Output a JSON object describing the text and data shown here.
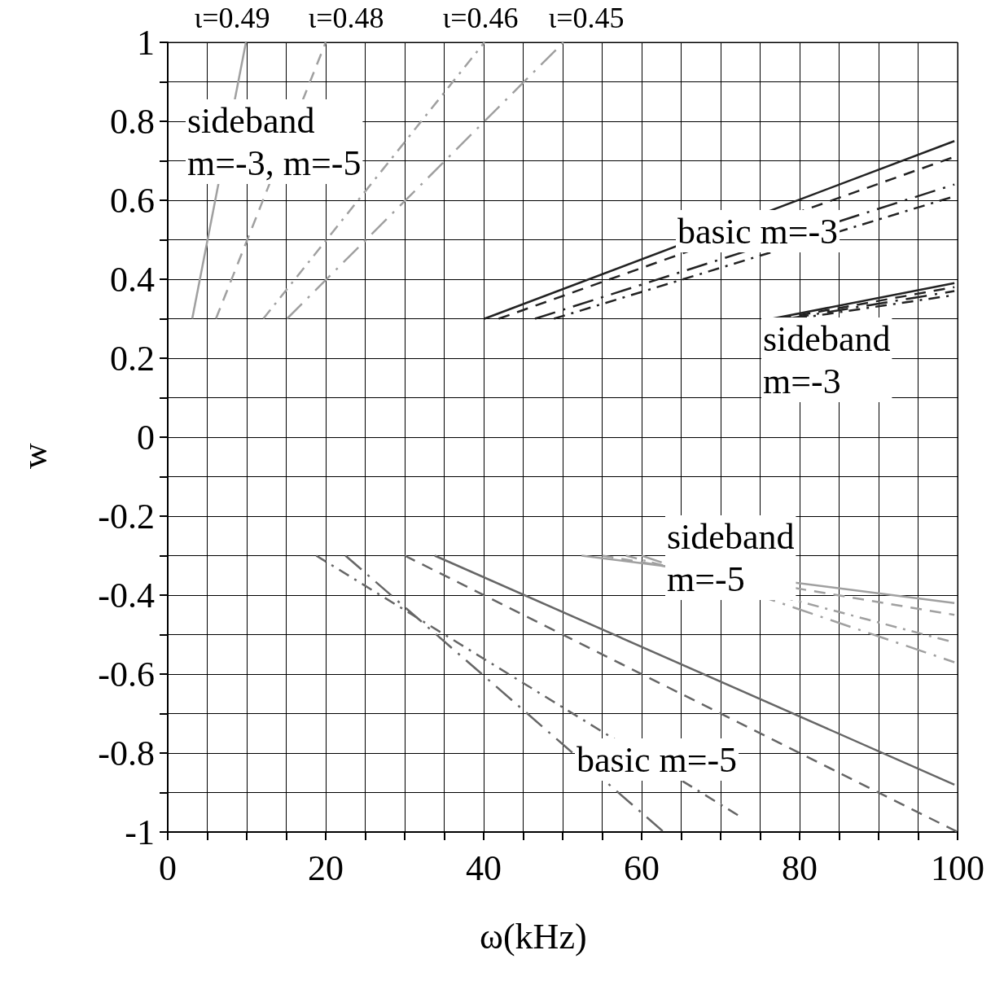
{
  "chart_data": {
    "type": "line",
    "xlabel": "ω(kHz)",
    "ylabel": "w",
    "xlim": [
      0,
      100
    ],
    "ylim": [
      -1,
      1
    ],
    "xticks": [
      0,
      {
        "value": 5,
        "label": null
      },
      {
        "value": 10,
        "label": null
      },
      {
        "value": 15,
        "label": null
      },
      20,
      {
        "value": 25,
        "label": null
      },
      {
        "value": 30,
        "label": null
      },
      {
        "value": 35,
        "label": null
      },
      40,
      {
        "value": 45,
        "label": null
      },
      {
        "value": 50,
        "label": null
      },
      {
        "value": 55,
        "label": null
      },
      60,
      {
        "value": 65,
        "label": null
      },
      {
        "value": 70,
        "label": null
      },
      {
        "value": 75,
        "label": null
      },
      80,
      {
        "value": 85,
        "label": null
      },
      {
        "value": 90,
        "label": null
      },
      {
        "value": 95,
        "label": null
      },
      100
    ],
    "yticks": [
      -1,
      {
        "value": -0.9,
        "label": null
      },
      -0.8,
      {
        "value": -0.7,
        "label": null
      },
      -0.6,
      {
        "value": -0.5,
        "label": null
      },
      -0.4,
      {
        "value": -0.3,
        "label": null
      },
      -0.2,
      {
        "value": -0.1,
        "label": null
      },
      0,
      {
        "value": 0.1,
        "label": null
      },
      0.2,
      {
        "value": 0.3,
        "label": null
      },
      0.4,
      {
        "value": 0.5,
        "label": null
      },
      0.6,
      {
        "value": 0.7,
        "label": null
      },
      0.8,
      {
        "value": 0.9,
        "label": null
      },
      1
    ],
    "grid": true,
    "marker": "none",
    "series": [
      {
        "color": "#a0a0a0",
        "line_style": "solid",
        "x": [
          3.1,
          9.9
        ],
        "values": [
          0.3,
          1.0
        ]
      },
      {
        "color": "#a0a0a0",
        "line_style": "dashed",
        "x": [
          6.1,
          20.0
        ],
        "values": [
          0.3,
          1.0
        ]
      },
      {
        "color": "#a0a0a0",
        "line_style": "dashdot",
        "x": [
          12.1,
          40.1
        ],
        "values": [
          0.3,
          1.0
        ]
      },
      {
        "color": "#a0a0a0",
        "line_style": "longdashdot",
        "x": [
          15.1,
          50.1
        ],
        "values": [
          0.3,
          1.0
        ]
      },
      {
        "color": "#222222",
        "line_style": "solid",
        "x": [
          40.1,
          99.6
        ],
        "values": [
          0.3,
          0.75
        ]
      },
      {
        "color": "#222222",
        "line_style": "dashed",
        "x": [
          41.9,
          99.6
        ],
        "values": [
          0.3,
          0.71
        ]
      },
      {
        "color": "#222222",
        "line_style": "longdashdot",
        "x": [
          46.5,
          99.6
        ],
        "values": [
          0.3,
          0.64
        ]
      },
      {
        "color": "#222222",
        "line_style": "dashdot",
        "x": [
          48.9,
          99.6
        ],
        "values": [
          0.3,
          0.61
        ]
      },
      {
        "color": "#222222",
        "line_style": "solid",
        "x": [
          76.5,
          99.6
        ],
        "values": [
          0.3,
          0.39
        ]
      },
      {
        "color": "#222222",
        "line_style": "dashed",
        "x": [
          77.5,
          99.6
        ],
        "values": [
          0.3,
          0.38
        ]
      },
      {
        "color": "#222222",
        "line_style": "longdashdot",
        "x": [
          78.5,
          99.6
        ],
        "values": [
          0.3,
          0.37
        ]
      },
      {
        "color": "#222222",
        "line_style": "dashdot",
        "x": [
          79.5,
          99.6
        ],
        "values": [
          0.3,
          0.36
        ]
      },
      {
        "color": "#666666",
        "line_style": "solid",
        "x": [
          33.8,
          99.6
        ],
        "values": [
          -0.3,
          -0.88
        ]
      },
      {
        "color": "#666666",
        "line_style": "dashed",
        "x": [
          30.0,
          100.0
        ],
        "values": [
          -0.3,
          -1.0
        ]
      },
      {
        "color": "#666666",
        "line_style": "longdashdot",
        "x": [
          22.5,
          62.8
        ],
        "values": [
          -0.3,
          -1.0
        ]
      },
      {
        "color": "#666666",
        "line_style": "dashdot",
        "x": [
          18.8,
          72.4
        ],
        "values": [
          -0.3,
          -0.96
        ]
      },
      {
        "color": "#a0a0a0",
        "line_style": "solid",
        "x": [
          52.4,
          99.6
        ],
        "values": [
          -0.3,
          -0.42
        ]
      },
      {
        "color": "#a0a0a0",
        "line_style": "dashed",
        "x": [
          55.0,
          99.6
        ],
        "values": [
          -0.3,
          -0.45
        ]
      },
      {
        "color": "#a0a0a0",
        "line_style": "dashdot",
        "x": [
          58.0,
          99.6
        ],
        "values": [
          -0.3,
          -0.52
        ]
      },
      {
        "color": "#a0a0a0",
        "line_style": "longdashdot",
        "x": [
          60.0,
          99.6
        ],
        "values": [
          -0.3,
          -0.57
        ]
      }
    ],
    "annotations": [
      "ι=0.49",
      "ι=0.48",
      "ι=0.46",
      "ι=0.45",
      "sideband\nm=-3, m=-5",
      "basic m=-3",
      "sideband\nm=-3",
      "sideband\nm=-5",
      "basic m=-5"
    ]
  }
}
